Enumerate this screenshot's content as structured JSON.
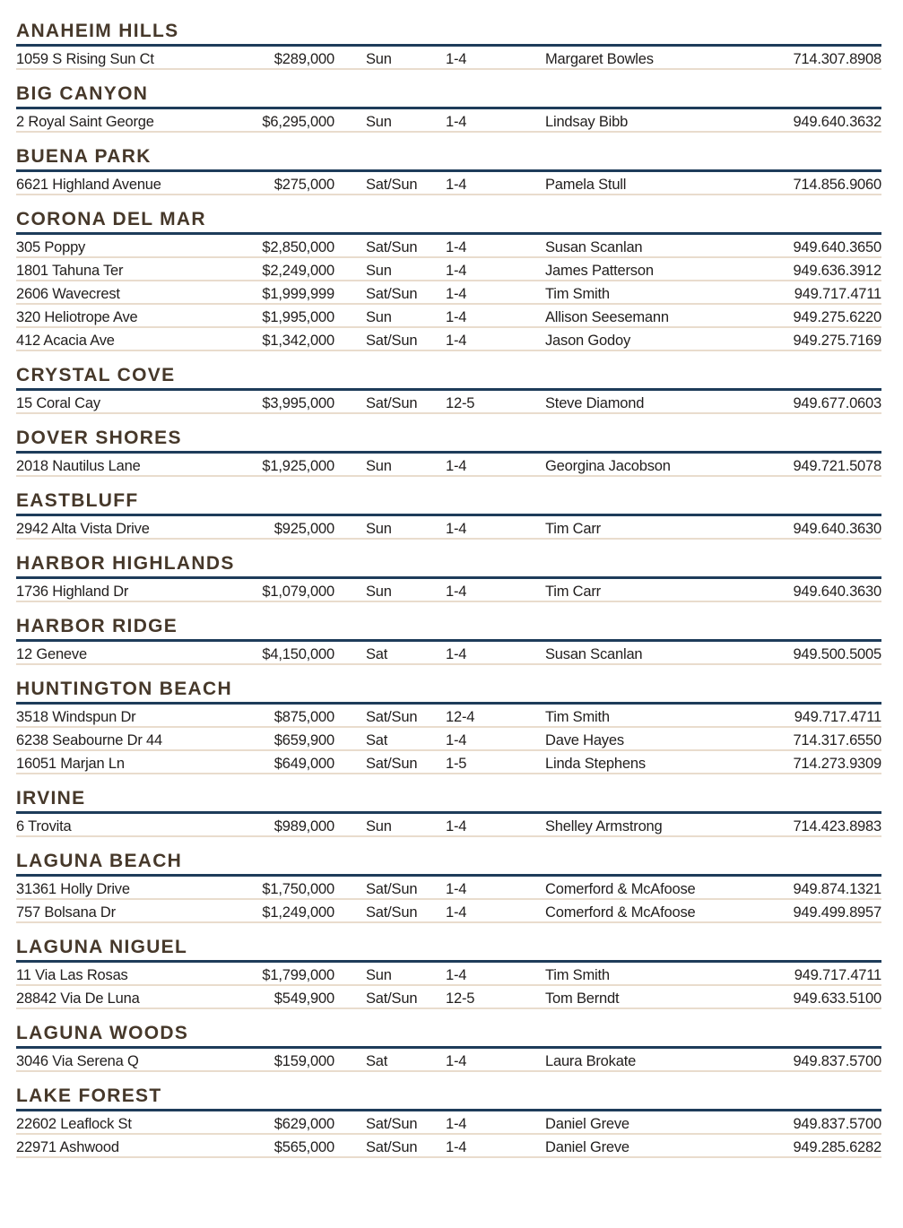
{
  "colors": {
    "header_text": "#46382a",
    "header_rule": "#1e3c5a",
    "row_rule": "#e9dccd",
    "body_text": "#211e1d"
  },
  "sections": [
    {
      "name": "ANAHEIM HILLS",
      "listings": [
        {
          "address": "1059 S Rising Sun Ct",
          "price": "$289,000",
          "days": "Sun",
          "time": "1-4",
          "agent": "Margaret Bowles",
          "phone": "714.307.8908"
        }
      ]
    },
    {
      "name": "BIG CANYON",
      "listings": [
        {
          "address": "2 Royal Saint George",
          "price": "$6,295,000",
          "days": "Sun",
          "time": "1-4",
          "agent": "Lindsay Bibb",
          "phone": "949.640.3632"
        }
      ]
    },
    {
      "name": "BUENA PARK",
      "listings": [
        {
          "address": "6621 Highland Avenue",
          "price": "$275,000",
          "days": "Sat/Sun",
          "time": "1-4",
          "agent": "Pamela Stull",
          "phone": "714.856.9060"
        }
      ]
    },
    {
      "name": "CORONA DEL MAR",
      "listings": [
        {
          "address": "305 Poppy",
          "price": "$2,850,000",
          "days": "Sat/Sun",
          "time": "1-4",
          "agent": "Susan Scanlan",
          "phone": "949.640.3650"
        },
        {
          "address": "1801 Tahuna Ter",
          "price": "$2,249,000",
          "days": "Sun",
          "time": "1-4",
          "agent": "James Patterson",
          "phone": "949.636.3912"
        },
        {
          "address": "2606 Wavecrest",
          "price": "$1,999,999",
          "days": "Sat/Sun",
          "time": "1-4",
          "agent": "Tim Smith",
          "phone": "949.717.4711"
        },
        {
          "address": "320 Heliotrope Ave",
          "price": "$1,995,000",
          "days": "Sun",
          "time": "1-4",
          "agent": "Allison Seesemann",
          "phone": "949.275.6220"
        },
        {
          "address": "412 Acacia Ave",
          "price": "$1,342,000",
          "days": "Sat/Sun",
          "time": "1-4",
          "agent": "Jason Godoy",
          "phone": "949.275.7169"
        }
      ]
    },
    {
      "name": "CRYSTAL COVE",
      "listings": [
        {
          "address": "15 Coral Cay",
          "price": "$3,995,000",
          "days": "Sat/Sun",
          "time": "12-5",
          "agent": "Steve Diamond",
          "phone": "949.677.0603"
        }
      ]
    },
    {
      "name": "DOVER SHORES",
      "listings": [
        {
          "address": "2018 Nautilus Lane",
          "price": "$1,925,000",
          "days": "Sun",
          "time": "1-4",
          "agent": "Georgina Jacobson",
          "phone": "949.721.5078"
        }
      ]
    },
    {
      "name": "EASTBLUFF",
      "listings": [
        {
          "address": "2942 Alta Vista Drive",
          "price": "$925,000",
          "days": "Sun",
          "time": "1-4",
          "agent": "Tim Carr",
          "phone": "949.640.3630"
        }
      ]
    },
    {
      "name": "HARBOR HIGHLANDS",
      "listings": [
        {
          "address": "1736 Highland Dr",
          "price": "$1,079,000",
          "days": "Sun",
          "time": "1-4",
          "agent": "Tim Carr",
          "phone": "949.640.3630"
        }
      ]
    },
    {
      "name": "HARBOR RIDGE",
      "listings": [
        {
          "address": "12 Geneve",
          "price": "$4,150,000",
          "days": "Sat",
          "time": "1-4",
          "agent": "Susan Scanlan",
          "phone": "949.500.5005"
        }
      ]
    },
    {
      "name": "HUNTINGTON BEACH",
      "listings": [
        {
          "address": "3518 Windspun Dr",
          "price": "$875,000",
          "days": "Sat/Sun",
          "time": "12-4",
          "agent": "Tim Smith",
          "phone": "949.717.4711"
        },
        {
          "address": "6238 Seabourne Dr 44",
          "price": "$659,900",
          "days": "Sat",
          "time": "1-4",
          "agent": "Dave Hayes",
          "phone": "714.317.6550"
        },
        {
          "address": "16051 Marjan Ln",
          "price": "$649,000",
          "days": "Sat/Sun",
          "time": "1-5",
          "agent": "Linda Stephens",
          "phone": "714.273.9309"
        }
      ]
    },
    {
      "name": "IRVINE",
      "listings": [
        {
          "address": "6 Trovita",
          "price": "$989,000",
          "days": "Sun",
          "time": "1-4",
          "agent": "Shelley Armstrong",
          "phone": "714.423.8983"
        }
      ]
    },
    {
      "name": "LAGUNA BEACH",
      "listings": [
        {
          "address": "31361 Holly Drive",
          "price": "$1,750,000",
          "days": "Sat/Sun",
          "time": "1-4",
          "agent": "Comerford & McAfoose",
          "phone": "949.874.1321"
        },
        {
          "address": "757 Bolsana Dr",
          "price": "$1,249,000",
          "days": "Sat/Sun",
          "time": "1-4",
          "agent": "Comerford & McAfoose",
          "phone": "949.499.8957"
        }
      ]
    },
    {
      "name": "LAGUNA NIGUEL",
      "listings": [
        {
          "address": "11 Via Las Rosas",
          "price": "$1,799,000",
          "days": "Sun",
          "time": "1-4",
          "agent": "Tim Smith",
          "phone": "949.717.4711"
        },
        {
          "address": "28842 Via De Luna",
          "price": "$549,900",
          "days": "Sat/Sun",
          "time": "12-5",
          "agent": "Tom Berndt",
          "phone": "949.633.5100"
        }
      ]
    },
    {
      "name": "LAGUNA WOODS",
      "listings": [
        {
          "address": "3046 Via Serena Q",
          "price": "$159,000",
          "days": "Sat",
          "time": "1-4",
          "agent": "Laura Brokate",
          "phone": "949.837.5700"
        }
      ]
    },
    {
      "name": "LAKE FOREST",
      "listings": [
        {
          "address": "22602 Leaflock St",
          "price": "$629,000",
          "days": "Sat/Sun",
          "time": "1-4",
          "agent": "Daniel Greve",
          "phone": "949.837.5700"
        },
        {
          "address": "22971 Ashwood",
          "price": "$565,000",
          "days": "Sat/Sun",
          "time": "1-4",
          "agent": "Daniel Greve",
          "phone": "949.285.6282"
        }
      ]
    }
  ]
}
